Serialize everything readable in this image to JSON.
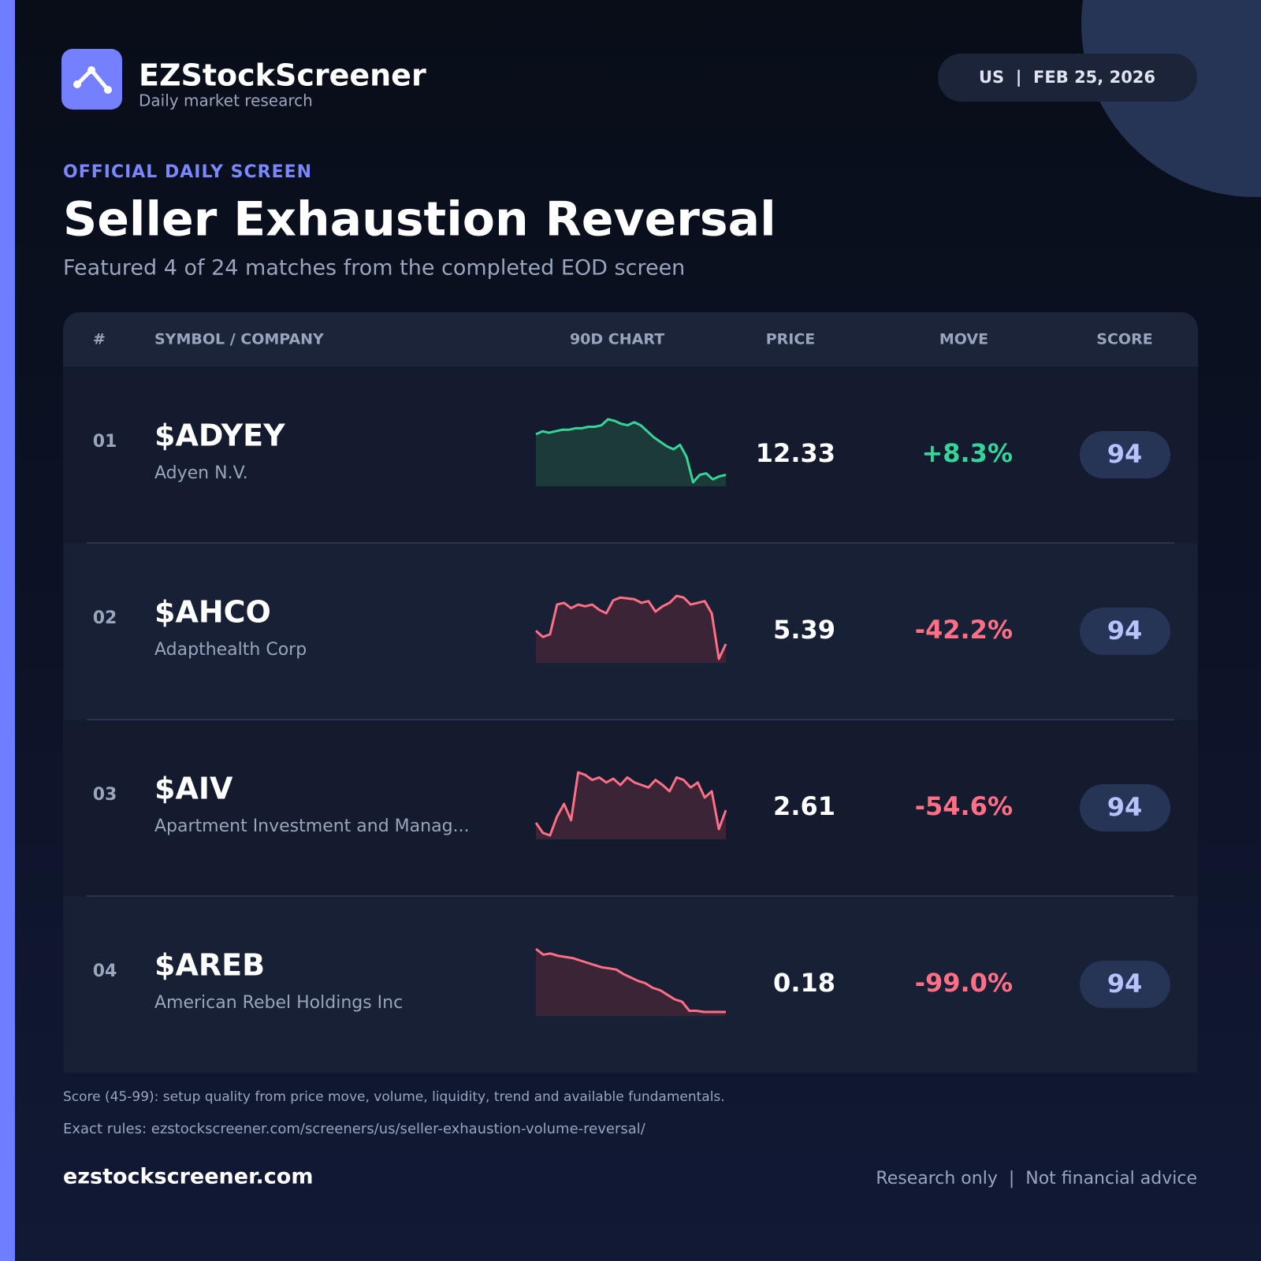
{
  "brand": {
    "name": "EZStockScreener",
    "tagline": "Daily market research"
  },
  "market_date": "US  |  FEB 25, 2026",
  "eyebrow": "OFFICIAL DAILY SCREEN",
  "title": "Seller Exhaustion Reversal",
  "subtitle": "Featured 4 of 24 matches from the completed EOD screen",
  "table": {
    "headers": [
      "#",
      "SYMBOL / COMPANY",
      "90D CHART",
      "PRICE",
      "MOVE",
      "SCORE"
    ],
    "rows": [
      {
        "rank": "01",
        "symbol": "$ADYEY",
        "company": "Adyen N.V.",
        "spark": [
          60,
          62,
          61,
          62,
          63,
          63,
          64,
          64,
          65,
          65,
          66,
          70,
          69,
          67,
          66,
          68,
          66,
          62,
          58,
          55,
          52,
          50,
          53,
          45,
          28,
          33,
          34,
          30,
          32,
          33
        ],
        "price": 12.33,
        "move": "+8.3%",
        "score": 94
      },
      {
        "rank": "02",
        "symbol": "$AHCO",
        "company": "Adapthealth Corp",
        "spark": [
          40,
          33,
          36,
          70,
          72,
          66,
          70,
          68,
          70,
          64,
          60,
          75,
          78,
          77,
          76,
          72,
          74,
          62,
          68,
          72,
          80,
          78,
          70,
          72,
          74,
          60,
          8,
          25
        ],
        "price": 5.39,
        "move": "-42.2%",
        "score": 94
      },
      {
        "rank": "03",
        "symbol": "$AIV",
        "company": "Apartment Investment and Manag...",
        "spark": [
          30,
          22,
          20,
          35,
          45,
          32,
          70,
          68,
          64,
          66,
          62,
          65,
          60,
          66,
          62,
          60,
          58,
          64,
          60,
          55,
          66,
          64,
          58,
          62,
          50,
          55,
          25,
          40
        ],
        "price": 2.61,
        "move": "-54.6%",
        "score": 94
      },
      {
        "rank": "04",
        "symbol": "$AREB",
        "company": "American Rebel Holdings Inc",
        "spark": [
          80,
          75,
          76,
          74,
          73,
          72,
          70,
          68,
          66,
          64,
          63,
          62,
          58,
          55,
          52,
          50,
          46,
          44,
          40,
          36,
          34,
          26,
          26,
          25,
          25,
          25,
          25
        ],
        "price": 0.18,
        "move": "-99.0%",
        "score": 94
      }
    ]
  },
  "notes": [
    "Score (45-99): setup quality from price move, volume, liquidity, trend and available fundamentals.",
    "Exact rules: ezstockscreener.com/screeners/us/seller-exhaustion-volume-reversal/"
  ],
  "footer": {
    "site": "ezstockscreener.com",
    "disclaimer": "Research only  |  Not financial advice"
  }
}
